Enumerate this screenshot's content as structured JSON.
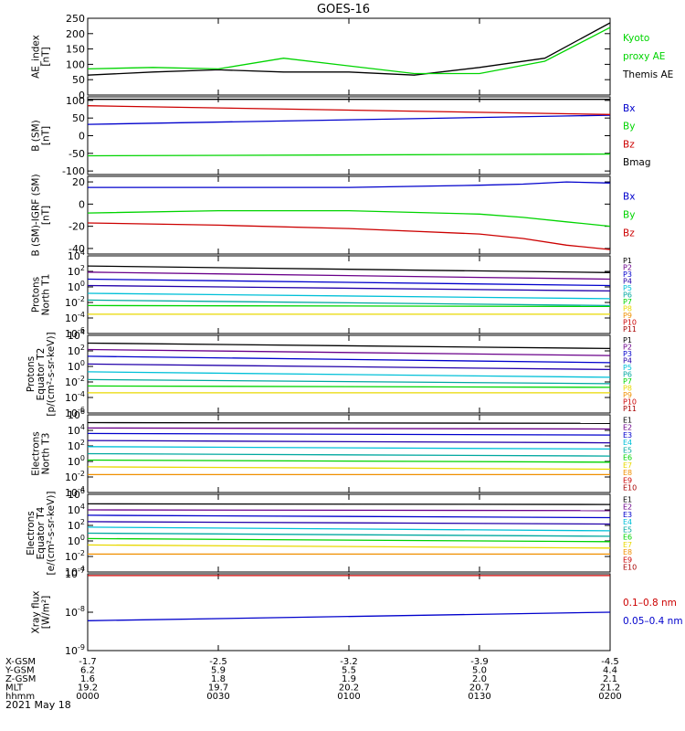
{
  "title": "GOES-16",
  "date": "2021 May 18",
  "colors": {
    "black": "#000000",
    "green": "#00d400",
    "blue": "#0000cc",
    "red": "#cc0000",
    "purple": "#6a008a",
    "navy": "#2200aa",
    "cyan": "#00c0d8",
    "teal": "#00a8a0",
    "yellow": "#e8d800",
    "orange": "#f09000",
    "darkred": "#a80000"
  },
  "ephemeris": {
    "labels": [
      "X-GSM",
      "Y-GSM",
      "Z-GSM",
      "MLT",
      "hhmm"
    ],
    "columns": [
      [
        "-1.7",
        "6.2",
        "1.6",
        "19.2",
        "0000"
      ],
      [
        "-2.5",
        "5.9",
        "1.8",
        "19.7",
        "0030"
      ],
      [
        "-3.2",
        "5.5",
        "1.9",
        "20.2",
        "0100"
      ],
      [
        "-3.9",
        "5.0",
        "2.0",
        "20.7",
        "0130"
      ],
      [
        "-4.5",
        "4.4",
        "2.1",
        "21.2",
        "0200"
      ]
    ]
  },
  "chart_data": [
    {
      "type": "line",
      "ylabel": [
        "AE_index",
        "[nT]"
      ],
      "ylim": [
        0,
        250
      ],
      "yticks": [
        "0",
        "50",
        "100",
        "150",
        "200",
        "250"
      ],
      "x": [
        0,
        15,
        30,
        45,
        60,
        75,
        90,
        105,
        120
      ],
      "series": [
        {
          "name": "Themis AE",
          "color": "#000000",
          "values": [
            65,
            75,
            82,
            75,
            75,
            65,
            90,
            120,
            235
          ]
        },
        {
          "name": "Kyoto proxy AE",
          "color": "#00d400",
          "values": [
            85,
            90,
            85,
            120,
            95,
            70,
            70,
            110,
            220
          ]
        }
      ],
      "legend": [
        {
          "text": "Kyoto",
          "color": "#00d400"
        },
        {
          "text": "proxy AE",
          "color": "#00d400"
        },
        {
          "text": "Themis AE",
          "color": "#000000"
        }
      ]
    },
    {
      "type": "line",
      "ylabel": [
        "B (SM)",
        "[nT]"
      ],
      "ylim": [
        -110,
        110
      ],
      "yticks": [
        "-100",
        "-50",
        "0",
        "50",
        "100"
      ],
      "x": [
        0,
        120
      ],
      "series": [
        {
          "name": "Bx",
          "color": "#0000cc",
          "values": [
            32,
            58
          ]
        },
        {
          "name": "By",
          "color": "#00d400",
          "values": [
            -57,
            -52
          ]
        },
        {
          "name": "Bz",
          "color": "#cc0000",
          "values": [
            85,
            60
          ]
        },
        {
          "name": "Bmag",
          "color": "#000000",
          "values": [
            103,
            103
          ]
        }
      ],
      "legend": [
        {
          "text": "Bx",
          "color": "#0000cc"
        },
        {
          "text": "By",
          "color": "#00d400"
        },
        {
          "text": "Bz",
          "color": "#cc0000"
        },
        {
          "text": "Bmag",
          "color": "#000000"
        }
      ]
    },
    {
      "type": "line",
      "ylabel": [
        "B (SM)-IGRF (SM)",
        "[nT]"
      ],
      "ylim": [
        -45,
        25
      ],
      "yticks": [
        "-40",
        "-20",
        "0",
        "20"
      ],
      "x": [
        0,
        30,
        60,
        90,
        100,
        110,
        120
      ],
      "series": [
        {
          "name": "Bx",
          "color": "#0000cc",
          "values": [
            15,
            15,
            15,
            17,
            18,
            20,
            19
          ]
        },
        {
          "name": "By",
          "color": "#00d400",
          "values": [
            -8,
            -6,
            -6,
            -9,
            -12,
            -16,
            -20
          ]
        },
        {
          "name": "Bz",
          "color": "#cc0000",
          "values": [
            -17,
            -19,
            -22,
            -27,
            -31,
            -37,
            -41
          ]
        }
      ],
      "legend": [
        {
          "text": "Bx",
          "color": "#0000cc"
        },
        {
          "text": "By",
          "color": "#00d400"
        },
        {
          "text": "Bz",
          "color": "#cc0000"
        }
      ]
    },
    {
      "type": "line",
      "ylabel": [
        "Protons",
        "North T1"
      ],
      "ylog": true,
      "ylim": [
        -6,
        4
      ],
      "yticks": [
        "10^4",
        "10^2",
        "10^0",
        "10^-2",
        "10^-4",
        "10^-6"
      ],
      "x": [
        0,
        120
      ],
      "series": [
        {
          "name": "P1",
          "values": [
            500,
            70
          ]
        },
        {
          "name": "P2",
          "values": [
            80,
            10
          ]
        },
        {
          "name": "P3",
          "values": [
            10,
            1.5
          ]
        },
        {
          "name": "P4",
          "values": [
            1.5,
            0.3
          ]
        },
        {
          "name": "P5",
          "values": [
            0.15,
            0.03
          ]
        },
        {
          "name": "P6",
          "values": [
            0.02,
            0.004
          ]
        },
        {
          "name": "P7",
          "values": [
            0.004,
            0.003
          ]
        },
        {
          "name": "P8",
          "values": [
            0.0003,
            0.0003
          ]
        }
      ],
      "legend": [
        {
          "text": "P1",
          "color": "#000000"
        },
        {
          "text": "P2",
          "color": "#6a008a"
        },
        {
          "text": "P3",
          "color": "#0000cc"
        },
        {
          "text": "P4",
          "color": "#2200aa"
        },
        {
          "text": "P5",
          "color": "#00c0d8"
        },
        {
          "text": "P6",
          "color": "#00a8a0"
        },
        {
          "text": "P7",
          "color": "#00d400"
        },
        {
          "text": "P8",
          "color": "#e8d800"
        },
        {
          "text": "P9",
          "color": "#f09000"
        },
        {
          "text": "P10",
          "color": "#cc0000"
        },
        {
          "text": "P11",
          "color": "#a80000"
        }
      ]
    },
    {
      "type": "line",
      "ylabel": [
        "Protons",
        "Equator T2",
        "[p/(cm²-s-sr-keV)]"
      ],
      "ylog": true,
      "ylim": [
        -6,
        4
      ],
      "yticks": [
        "10^4",
        "10^2",
        "10^0",
        "10^-2",
        "10^-4",
        "10^-6"
      ],
      "x": [
        0,
        120
      ],
      "series": [
        {
          "name": "P1",
          "values": [
            1000,
            200
          ]
        },
        {
          "name": "P2",
          "values": [
            150,
            25
          ]
        },
        {
          "name": "P3",
          "values": [
            20,
            3
          ]
        },
        {
          "name": "P4",
          "values": [
            2,
            0.4
          ]
        },
        {
          "name": "P5",
          "values": [
            0.2,
            0.04
          ]
        },
        {
          "name": "P6",
          "values": [
            0.02,
            0.006
          ]
        },
        {
          "name": "P7",
          "values": [
            0.003,
            0.002
          ]
        },
        {
          "name": "P8",
          "values": [
            0.0004,
            0.0004
          ]
        }
      ],
      "legend": [
        {
          "text": "P1",
          "color": "#000000"
        },
        {
          "text": "P2",
          "color": "#6a008a"
        },
        {
          "text": "P3",
          "color": "#0000cc"
        },
        {
          "text": "P4",
          "color": "#2200aa"
        },
        {
          "text": "P5",
          "color": "#00c0d8"
        },
        {
          "text": "P6",
          "color": "#00a8a0"
        },
        {
          "text": "P7",
          "color": "#00d400"
        },
        {
          "text": "P8",
          "color": "#e8d800"
        },
        {
          "text": "P9",
          "color": "#f09000"
        },
        {
          "text": "P10",
          "color": "#cc0000"
        },
        {
          "text": "P11",
          "color": "#a80000"
        }
      ]
    },
    {
      "type": "line",
      "ylabel": [
        "Electrons",
        "North T3"
      ],
      "ylog": true,
      "ylim": [
        -4,
        6
      ],
      "yticks": [
        "10^6",
        "10^4",
        "10^2",
        "10^0",
        "10^-2",
        "10^-4"
      ],
      "x": [
        0,
        120
      ],
      "series": [
        {
          "name": "E1",
          "values": [
            100000,
            80000
          ]
        },
        {
          "name": "E2",
          "values": [
            20000,
            15000
          ]
        },
        {
          "name": "E3",
          "values": [
            4000,
            2500
          ]
        },
        {
          "name": "E4",
          "values": [
            500,
            250
          ]
        },
        {
          "name": "E5",
          "values": [
            80,
            40
          ]
        },
        {
          "name": "E6",
          "values": [
            10,
            5
          ]
        },
        {
          "name": "E7",
          "values": [
            1.5,
            0.8
          ]
        },
        {
          "name": "E8",
          "values": [
            0.2,
            0.1
          ]
        },
        {
          "name": "E9",
          "values": [
            0.02,
            0.02
          ]
        }
      ],
      "legend": [
        {
          "text": "E1",
          "color": "#000000"
        },
        {
          "text": "E2",
          "color": "#6a008a"
        },
        {
          "text": "E3",
          "color": "#0000cc"
        },
        {
          "text": "E4",
          "color": "#00c0d8"
        },
        {
          "text": "E5",
          "color": "#00a8a0"
        },
        {
          "text": "E6",
          "color": "#00d400"
        },
        {
          "text": "E7",
          "color": "#e8d800"
        },
        {
          "text": "E8",
          "color": "#f09000"
        },
        {
          "text": "E9",
          "color": "#cc0000"
        },
        {
          "text": "E10",
          "color": "#a80000"
        }
      ]
    },
    {
      "type": "line",
      "ylabel": [
        "Electrons",
        "Equator T4",
        "[e/(cm²-s-sr-keV)]"
      ],
      "ylog": true,
      "ylim": [
        -4,
        6
      ],
      "yticks": [
        "10^6",
        "10^4",
        "10^2",
        "10^0",
        "10^-2",
        "10^-4"
      ],
      "x": [
        0,
        120
      ],
      "series": [
        {
          "name": "E1",
          "values": [
            60000,
            50000
          ]
        },
        {
          "name": "E2",
          "values": [
            10000,
            8000
          ]
        },
        {
          "name": "E3",
          "values": [
            2000,
            1000
          ]
        },
        {
          "name": "E4",
          "values": [
            300,
            150
          ]
        },
        {
          "name": "E5",
          "values": [
            60,
            20
          ]
        },
        {
          "name": "E6",
          "values": [
            10,
            4
          ]
        },
        {
          "name": "E7",
          "values": [
            2,
            0.8
          ]
        },
        {
          "name": "E8",
          "values": [
            0.3,
            0.12
          ]
        },
        {
          "name": "E9",
          "values": [
            0.02,
            0.02
          ]
        }
      ],
      "legend": [
        {
          "text": "E1",
          "color": "#000000"
        },
        {
          "text": "E2",
          "color": "#6a008a"
        },
        {
          "text": "E3",
          "color": "#0000cc"
        },
        {
          "text": "E4",
          "color": "#00c0d8"
        },
        {
          "text": "E5",
          "color": "#00a8a0"
        },
        {
          "text": "E6",
          "color": "#00d400"
        },
        {
          "text": "E7",
          "color": "#e8d800"
        },
        {
          "text": "E8",
          "color": "#f09000"
        },
        {
          "text": "E9",
          "color": "#cc0000"
        },
        {
          "text": "E10",
          "color": "#a80000"
        }
      ]
    },
    {
      "type": "line",
      "ylabel": [
        "Xray flux",
        "[W/m²]"
      ],
      "ylog": true,
      "ylim": [
        -9,
        -7
      ],
      "yticks": [
        "10^-7",
        "10^-8",
        "10^-9"
      ],
      "x": [
        0,
        120
      ],
      "series": [
        {
          "name": "0.1-0.8 nm",
          "color": "#cc0000",
          "values": [
            9e-08,
            9e-08
          ]
        },
        {
          "name": "0.05-0.4 nm",
          "color": "#0000cc",
          "values": [
            6e-09,
            1e-08
          ]
        }
      ],
      "legend": [
        {
          "text": "0.1–0.8 nm",
          "color": "#cc0000"
        },
        {
          "text": "0.05–0.4 nm",
          "color": "#0000cc"
        }
      ]
    }
  ]
}
